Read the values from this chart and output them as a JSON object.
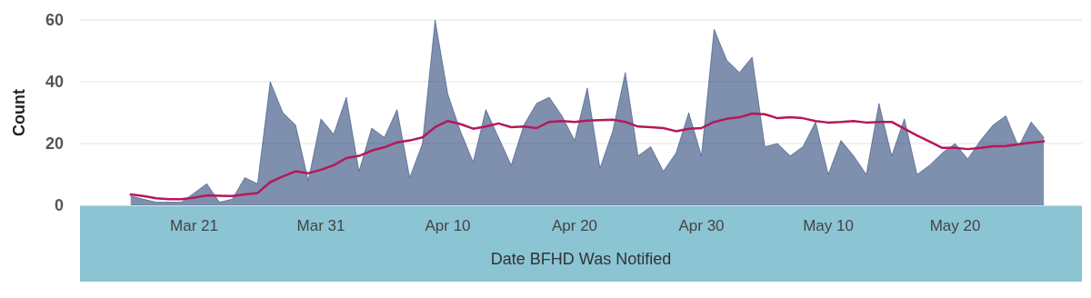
{
  "chart_data": {
    "type": "area",
    "xlabel": "Date BFHD Was Notified",
    "ylabel": "Count",
    "x": [
      "--03-16",
      "--03-17",
      "--03-18",
      "--03-19",
      "--03-20",
      "--03-21",
      "--03-22",
      "--03-23",
      "--03-24",
      "--03-25",
      "--03-26",
      "--03-27",
      "--03-28",
      "--03-29",
      "--03-30",
      "--03-31",
      "--04-01",
      "--04-02",
      "--04-03",
      "--04-04",
      "--04-05",
      "--04-06",
      "--04-07",
      "--04-08",
      "--04-09",
      "--04-10",
      "--04-11",
      "--04-12",
      "--04-13",
      "--04-14",
      "--04-15",
      "--04-16",
      "--04-17",
      "--04-18",
      "--04-19",
      "--04-20",
      "--04-21",
      "--04-22",
      "--04-23",
      "--04-24",
      "--04-25",
      "--04-26",
      "--04-27",
      "--04-28",
      "--04-29",
      "--04-30",
      "--05-01",
      "--05-02",
      "--05-03",
      "--05-04",
      "--05-05",
      "--05-06",
      "--05-07",
      "--05-08",
      "--05-09",
      "--05-10",
      "--05-11",
      "--05-12",
      "--05-13",
      "--05-14",
      "--05-15",
      "--05-16",
      "--05-17",
      "--05-18",
      "--05-19",
      "--05-20",
      "--05-21",
      "--05-22",
      "--05-23",
      "--05-24",
      "--05-25",
      "--05-26",
      "--05-27"
    ],
    "series": [
      {
        "color": "#1e3a70",
        "values": [
          3,
          2,
          1,
          1,
          1,
          4,
          7,
          1,
          2,
          9,
          7,
          40,
          30,
          26,
          8,
          28,
          23,
          35,
          11,
          25,
          22,
          31,
          9,
          20,
          60,
          36,
          24,
          14,
          31,
          22,
          13,
          26,
          33,
          35,
          29,
          21,
          38,
          12,
          24,
          43,
          16,
          19,
          11,
          17,
          30,
          16,
          57,
          47,
          43,
          48,
          19,
          20,
          16,
          19,
          27,
          10,
          21,
          16,
          10,
          33,
          16,
          28,
          10,
          13,
          17,
          20,
          15,
          21,
          26,
          29,
          19,
          27,
          22
        ]
      },
      {
        "type": "line",
        "color": "#b5185a",
        "values": [
          3.5,
          3,
          2.3,
          2,
          2,
          2.5,
          3.2,
          3.1,
          3,
          3.5,
          4,
          7.5,
          9.4,
          11,
          10.4,
          11.5,
          13,
          15.3,
          16,
          17.7,
          18.8,
          20.4,
          21,
          22,
          25.3,
          27.3,
          26.3,
          24.8,
          25.5,
          26.5,
          25.3,
          25.5,
          25,
          27,
          27.3,
          27,
          27.4,
          27.6,
          27.7,
          27,
          25.5,
          25.3,
          25,
          24,
          24.8,
          25,
          27,
          28,
          28.5,
          29.7,
          29.5,
          28.2,
          28.5,
          28.2,
          27.3,
          26.8,
          27,
          27.3,
          26.8,
          27,
          27,
          24.8,
          22.6,
          20.6,
          18.6,
          18.6,
          18.2,
          18.6,
          19.1,
          19.2,
          19.8,
          20.3,
          20.7
        ]
      }
    ],
    "xlim": [
      "--03-12",
      "--05-30"
    ],
    "xticks": [
      {
        "value": "--03-21",
        "label": "Mar 21"
      },
      {
        "value": "--03-31",
        "label": "Mar 31"
      },
      {
        "value": "--04-10",
        "label": "Apr 10"
      },
      {
        "value": "--04-20",
        "label": "Apr 20"
      },
      {
        "value": "--04-30",
        "label": "Apr 30"
      },
      {
        "value": "--05-10",
        "label": "May 10"
      },
      {
        "value": "--05-20",
        "label": "May 20"
      }
    ],
    "ylim": [
      0,
      60
    ],
    "yticks": [
      0,
      20,
      40,
      60
    ],
    "grid": "y",
    "marker": "none",
    "line_style": "solid"
  }
}
